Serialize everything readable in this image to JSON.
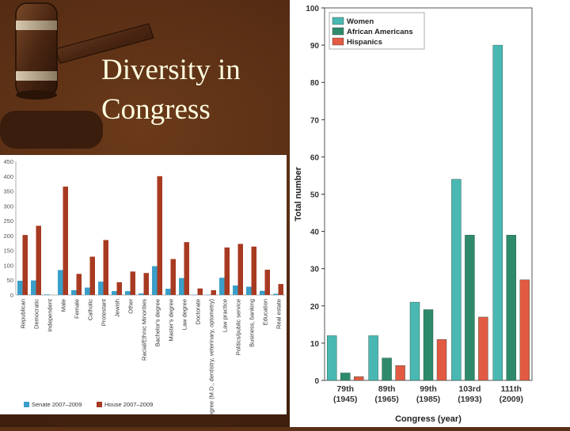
{
  "slide": {
    "title": "Diversity in\nCongress"
  },
  "chart_data": [
    {
      "type": "bar",
      "title": "",
      "xlabel": "",
      "ylabel": "",
      "ylim": [
        0,
        450
      ],
      "yticks": [
        0,
        50,
        100,
        150,
        200,
        250,
        300,
        350,
        400,
        450
      ],
      "legend_position": "bottom",
      "categories": [
        "Republican",
        "Democratic",
        "Independent",
        "Male",
        "Female",
        "Catholic",
        "Protestant",
        "Jewish",
        "Other",
        "Racial/Ethnic Minorities",
        "Bachelor's degree",
        "Master's degree",
        "Law degree",
        "Doctorate",
        "Medical degree (M.D., dentistry, veterinary, optometry)",
        "Law practice",
        "Politics/public service",
        "Business, banking",
        "Education",
        "Real estate"
      ],
      "series": [
        {
          "name": "Senate 2007–2009",
          "color": "#3a9fc8",
          "values": [
            48,
            49,
            2,
            84,
            16,
            25,
            45,
            13,
            13,
            5,
            97,
            21,
            57,
            1,
            1,
            58,
            32,
            28,
            14,
            4
          ]
        },
        {
          "name": "House 2007–2009",
          "color": "#a83a22",
          "values": [
            202,
            233,
            0,
            365,
            71,
            129,
            185,
            43,
            79,
            74,
            400,
            121,
            178,
            22,
            16,
            160,
            172,
            163,
            85,
            37
          ]
        }
      ]
    },
    {
      "type": "bar",
      "title": "",
      "xlabel": "Congress (year)",
      "ylabel": "Total number",
      "ylim": [
        0,
        100
      ],
      "yticks": [
        0,
        10,
        20,
        30,
        40,
        50,
        60,
        70,
        80,
        90,
        100
      ],
      "legend_position": "top-left",
      "categories": [
        "79th\n(1945)",
        "89th\n(1965)",
        "99th\n(1985)",
        "103rd\n(1993)",
        "111th\n(2009)"
      ],
      "series": [
        {
          "name": "Women",
          "color": "#4ab8b2",
          "values": [
            12,
            12,
            21,
            54,
            90
          ]
        },
        {
          "name": "African Americans",
          "color": "#2f8a6c",
          "values": [
            2,
            6,
            19,
            39,
            39
          ]
        },
        {
          "name": "Hispanics",
          "color": "#e35a42",
          "values": [
            1,
            4,
            11,
            17,
            27
          ]
        }
      ]
    }
  ]
}
